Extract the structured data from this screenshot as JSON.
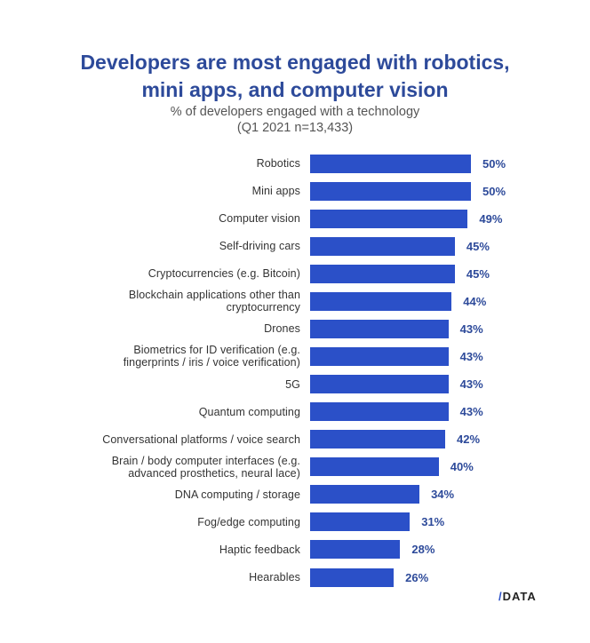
{
  "chart_data": {
    "type": "bar",
    "orientation": "horizontal",
    "title": "Developers are most engaged with robotics, mini apps, and computer vision",
    "subtitle": [
      "% of developers  engaged with a technology",
      "(Q1 2021  n=13,433)"
    ],
    "categories": [
      [
        "Robotics"
      ],
      [
        "Mini apps"
      ],
      [
        "Computer vision"
      ],
      [
        "Self-driving cars"
      ],
      [
        "Cryptocurrencies (e.g. Bitcoin)"
      ],
      [
        "Blockchain applications other than",
        "cryptocurrency"
      ],
      [
        "Drones"
      ],
      [
        "Biometrics for ID verification (e.g.",
        "fingerprints / iris / voice verification)"
      ],
      [
        "5G"
      ],
      [
        "Quantum computing"
      ],
      [
        "Conversational platforms / voice search"
      ],
      [
        "Brain / body computer interfaces (e.g.",
        "advanced prosthetics, neural lace)"
      ],
      [
        "DNA computing / storage"
      ],
      [
        "Fog/edge computing"
      ],
      [
        "Haptic feedback"
      ],
      [
        "Hearables"
      ]
    ],
    "values": [
      50,
      50,
      49,
      45,
      45,
      44,
      43,
      43,
      43,
      43,
      42,
      40,
      34,
      31,
      28,
      26
    ],
    "value_labels": [
      "50%",
      "50%",
      "49%",
      "45%",
      "45%",
      "44%",
      "43%",
      "43%",
      "43%",
      "43%",
      "42%",
      "40%",
      "34%",
      "31%",
      "28%",
      "26%"
    ],
    "xlim": [
      0,
      50
    ],
    "grid": false,
    "colors": {
      "bar": "#2b50c8",
      "title": "#2d4a9a"
    }
  },
  "branding": {
    "logo_slash": "/",
    "logo_text": "DATA"
  }
}
